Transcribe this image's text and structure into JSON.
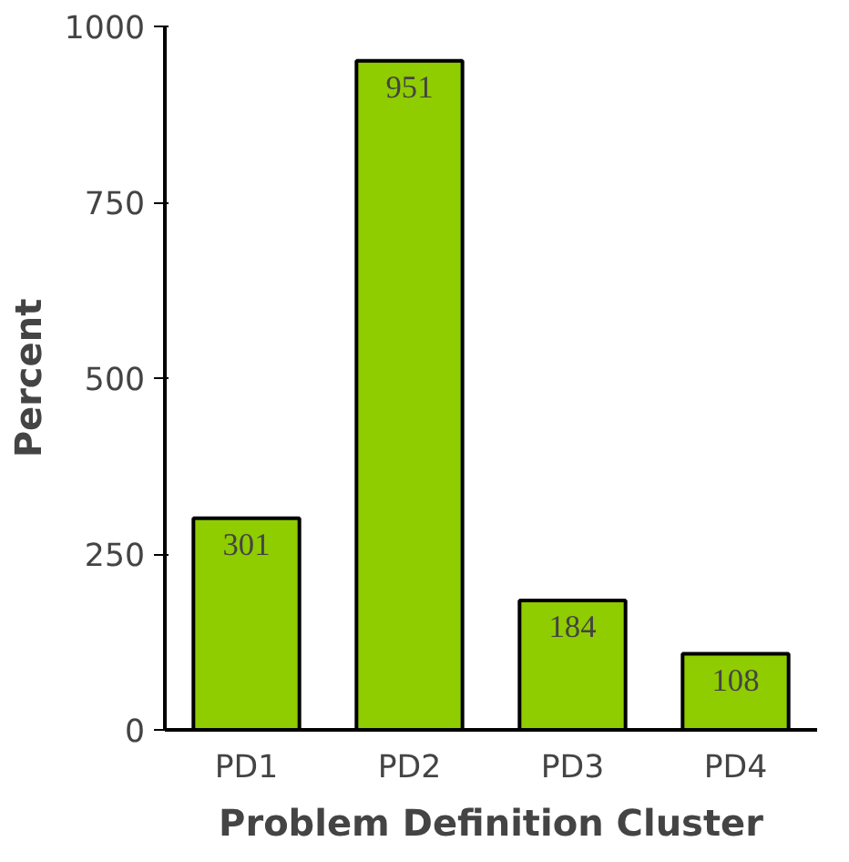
{
  "chart_data": {
    "type": "bar",
    "xlabel": "Problem Definition Cluster",
    "ylabel": "Percent",
    "categories": [
      "PD1",
      "PD2",
      "PD3",
      "PD4"
    ],
    "values": [
      301,
      951,
      184,
      108
    ],
    "color": "#8fcc00",
    "ylim": [
      0,
      1000
    ],
    "yticks": [
      0,
      250,
      500,
      750,
      1000
    ],
    "grid": false,
    "data_labels": true
  }
}
